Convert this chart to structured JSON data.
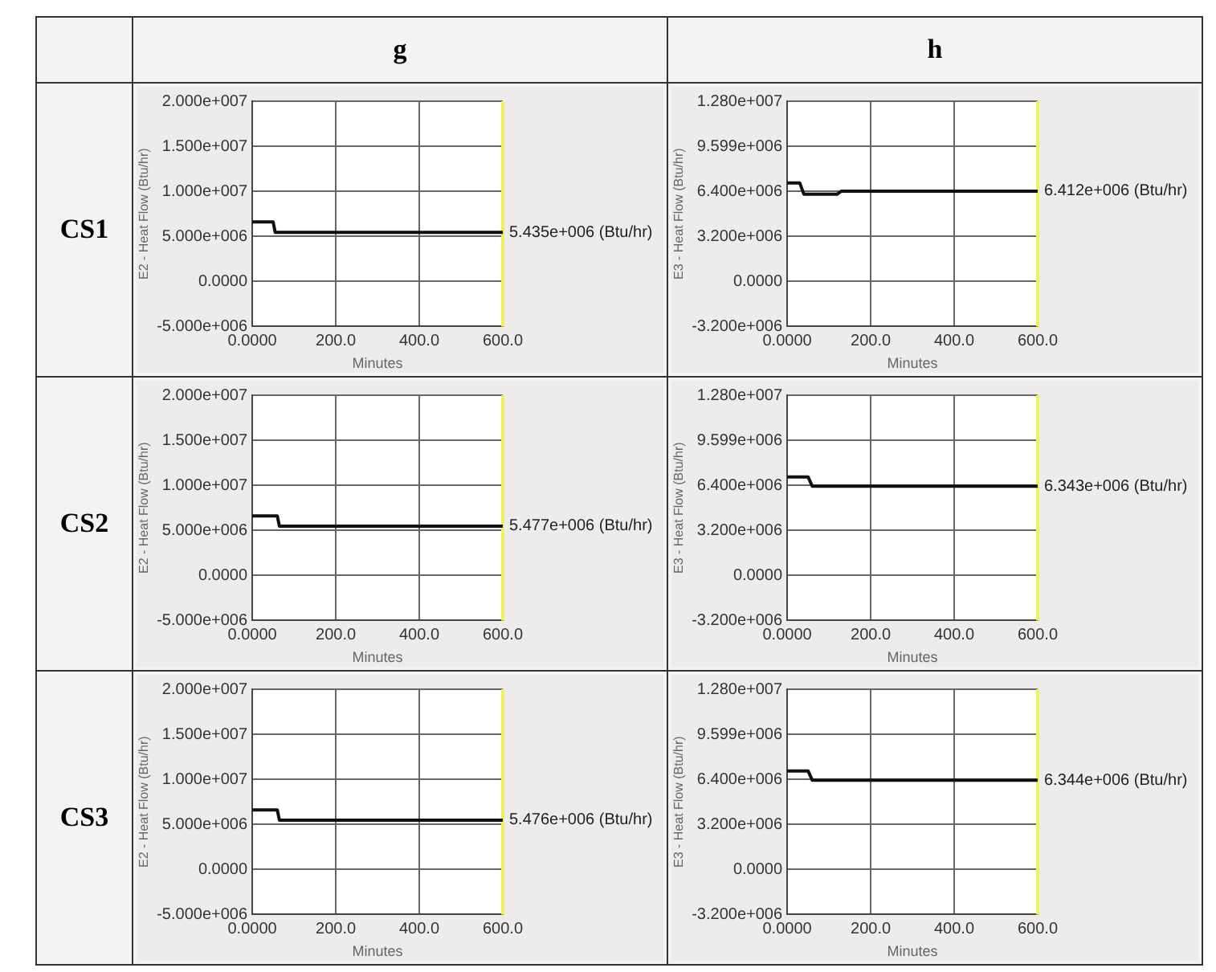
{
  "chart_data": [
    {
      "type": "other",
      "categories": [
        "g",
        "h"
      ],
      "y_categories": [
        "CS1",
        "CS2",
        "CS3"
      ]
    },
    {
      "type": "line",
      "xlabel": "Minutes",
      "ylabel": "E2 - Heat Flow (Btu/hr)",
      "xlim": [
        0,
        600
      ],
      "xticks": [
        {
          "value": 0,
          "label": "0.0000"
        },
        {
          "value": 200,
          "label": "200.0"
        },
        {
          "value": 400,
          "label": "400.0"
        },
        {
          "value": 600,
          "label": "600.0"
        }
      ],
      "ylim": [
        -5000000,
        20000000
      ],
      "yticks": [
        {
          "value": -5000000,
          "label": "-5.000e+006"
        },
        {
          "value": 0,
          "label": "0.0000"
        },
        {
          "value": 5000000,
          "label": "5.000e+006"
        },
        {
          "value": 10000000,
          "label": "1.000e+007"
        },
        {
          "value": 15000000,
          "label": "1.500e+007"
        },
        {
          "value": 20000000,
          "label": "2.000e+007"
        }
      ],
      "grid": true,
      "legend": false,
      "marker": "none",
      "line_style": "solid",
      "ref_lines": [
        {
          "axis": "x",
          "value": 600,
          "color": "#f0f060"
        }
      ],
      "annotations": [
        "5.435e+006 (Btu/hr)"
      ],
      "series": [
        {
          "color": "#111111",
          "x": [
            0,
            50,
            55,
            600
          ],
          "values": [
            6600000,
            6600000,
            5435000,
            5435000
          ]
        }
      ]
    },
    {
      "type": "line",
      "xlabel": "Minutes",
      "ylabel": "E3 - Heat Flow (Btu/hr)",
      "xlim": [
        0,
        600
      ],
      "xticks": [
        {
          "value": 0,
          "label": "0.0000"
        },
        {
          "value": 200,
          "label": "200.0"
        },
        {
          "value": 400,
          "label": "400.0"
        },
        {
          "value": 600,
          "label": "600.0"
        }
      ],
      "ylim": [
        -3200000,
        12800000
      ],
      "yticks": [
        {
          "value": -3200000,
          "label": "-3.200e+006"
        },
        {
          "value": 0,
          "label": "0.0000"
        },
        {
          "value": 3200000,
          "label": "3.200e+006"
        },
        {
          "value": 6400000,
          "label": "6.400e+006"
        },
        {
          "value": 9599000,
          "label": "9.599e+006"
        },
        {
          "value": 12800000,
          "label": "1.280e+007"
        }
      ],
      "grid": true,
      "legend": false,
      "marker": "none",
      "line_style": "solid",
      "ref_lines": [
        {
          "axis": "x",
          "value": 600,
          "color": "#f0f060"
        }
      ],
      "annotations": [
        "6.412e+006 (Btu/hr)"
      ],
      "series": [
        {
          "color": "#111111",
          "x": [
            0,
            30,
            40,
            120,
            130,
            600
          ],
          "values": [
            7000000,
            7000000,
            6200000,
            6200000,
            6412000,
            6412000
          ]
        }
      ]
    },
    {
      "type": "line",
      "xlabel": "Minutes",
      "ylabel": "E2 - Heat Flow (Btu/hr)",
      "xlim": [
        0,
        600
      ],
      "xticks": [
        {
          "value": 0,
          "label": "0.0000"
        },
        {
          "value": 200,
          "label": "200.0"
        },
        {
          "value": 400,
          "label": "400.0"
        },
        {
          "value": 600,
          "label": "600.0"
        }
      ],
      "ylim": [
        -5000000,
        20000000
      ],
      "yticks": [
        {
          "value": -5000000,
          "label": "-5.000e+006"
        },
        {
          "value": 0,
          "label": "0.0000"
        },
        {
          "value": 5000000,
          "label": "5.000e+006"
        },
        {
          "value": 10000000,
          "label": "1.000e+007"
        },
        {
          "value": 15000000,
          "label": "1.500e+007"
        },
        {
          "value": 20000000,
          "label": "2.000e+007"
        }
      ],
      "grid": true,
      "legend": false,
      "marker": "none",
      "line_style": "solid",
      "ref_lines": [
        {
          "axis": "x",
          "value": 600,
          "color": "#f0f060"
        }
      ],
      "annotations": [
        "5.477e+006 (Btu/hr)"
      ],
      "series": [
        {
          "color": "#111111",
          "x": [
            0,
            60,
            65,
            600
          ],
          "values": [
            6600000,
            6600000,
            5477000,
            5477000
          ]
        }
      ]
    },
    {
      "type": "line",
      "xlabel": "Minutes",
      "ylabel": "E3 - Heat Flow (Btu/hr)",
      "xlim": [
        0,
        600
      ],
      "xticks": [
        {
          "value": 0,
          "label": "0.0000"
        },
        {
          "value": 200,
          "label": "200.0"
        },
        {
          "value": 400,
          "label": "400.0"
        },
        {
          "value": 600,
          "label": "600.0"
        }
      ],
      "ylim": [
        -3200000,
        12800000
      ],
      "yticks": [
        {
          "value": -3200000,
          "label": "-3.200e+006"
        },
        {
          "value": 0,
          "label": "0.0000"
        },
        {
          "value": 3200000,
          "label": "3.200e+006"
        },
        {
          "value": 6400000,
          "label": "6.400e+006"
        },
        {
          "value": 9599000,
          "label": "9.599e+006"
        },
        {
          "value": 12800000,
          "label": "1.280e+007"
        }
      ],
      "grid": true,
      "legend": false,
      "marker": "none",
      "line_style": "solid",
      "ref_lines": [
        {
          "axis": "x",
          "value": 600,
          "color": "#f0f060"
        }
      ],
      "annotations": [
        "6.343e+006 (Btu/hr)"
      ],
      "series": [
        {
          "color": "#111111",
          "x": [
            0,
            50,
            60,
            600
          ],
          "values": [
            7000000,
            7000000,
            6343000,
            6343000
          ]
        }
      ]
    },
    {
      "type": "line",
      "xlabel": "Minutes",
      "ylabel": "E2 - Heat Flow (Btu/hr)",
      "xlim": [
        0,
        600
      ],
      "xticks": [
        {
          "value": 0,
          "label": "0.0000"
        },
        {
          "value": 200,
          "label": "200.0"
        },
        {
          "value": 400,
          "label": "400.0"
        },
        {
          "value": 600,
          "label": "600.0"
        }
      ],
      "ylim": [
        -5000000,
        20000000
      ],
      "yticks": [
        {
          "value": -5000000,
          "label": "-5.000e+006"
        },
        {
          "value": 0,
          "label": "0.0000"
        },
        {
          "value": 5000000,
          "label": "5.000e+006"
        },
        {
          "value": 10000000,
          "label": "1.000e+007"
        },
        {
          "value": 15000000,
          "label": "1.500e+007"
        },
        {
          "value": 20000000,
          "label": "2.000e+007"
        }
      ],
      "grid": true,
      "legend": false,
      "marker": "none",
      "line_style": "solid",
      "ref_lines": [
        {
          "axis": "x",
          "value": 600,
          "color": "#f0f060"
        }
      ],
      "annotations": [
        "5.476e+006 (Btu/hr)"
      ],
      "series": [
        {
          "color": "#111111",
          "x": [
            0,
            60,
            65,
            600
          ],
          "values": [
            6600000,
            6600000,
            5476000,
            5476000
          ]
        }
      ]
    },
    {
      "type": "line",
      "xlabel": "Minutes",
      "ylabel": "E3 - Heat Flow (Btu/hr)",
      "xlim": [
        0,
        600
      ],
      "xticks": [
        {
          "value": 0,
          "label": "0.0000"
        },
        {
          "value": 200,
          "label": "200.0"
        },
        {
          "value": 400,
          "label": "400.0"
        },
        {
          "value": 600,
          "label": "600.0"
        }
      ],
      "ylim": [
        -3200000,
        12800000
      ],
      "yticks": [
        {
          "value": -3200000,
          "label": "-3.200e+006"
        },
        {
          "value": 0,
          "label": "0.0000"
        },
        {
          "value": 3200000,
          "label": "3.200e+006"
        },
        {
          "value": 6400000,
          "label": "6.400e+006"
        },
        {
          "value": 9599000,
          "label": "9.599e+006"
        },
        {
          "value": 12800000,
          "label": "1.280e+007"
        }
      ],
      "grid": true,
      "legend": false,
      "marker": "none",
      "line_style": "solid",
      "ref_lines": [
        {
          "axis": "x",
          "value": 600,
          "color": "#f0f060"
        }
      ],
      "annotations": [
        "6.344e+006 (Btu/hr)"
      ],
      "series": [
        {
          "color": "#111111",
          "x": [
            0,
            50,
            60,
            600
          ],
          "values": [
            7000000,
            7000000,
            6344000,
            6344000
          ]
        }
      ]
    }
  ]
}
